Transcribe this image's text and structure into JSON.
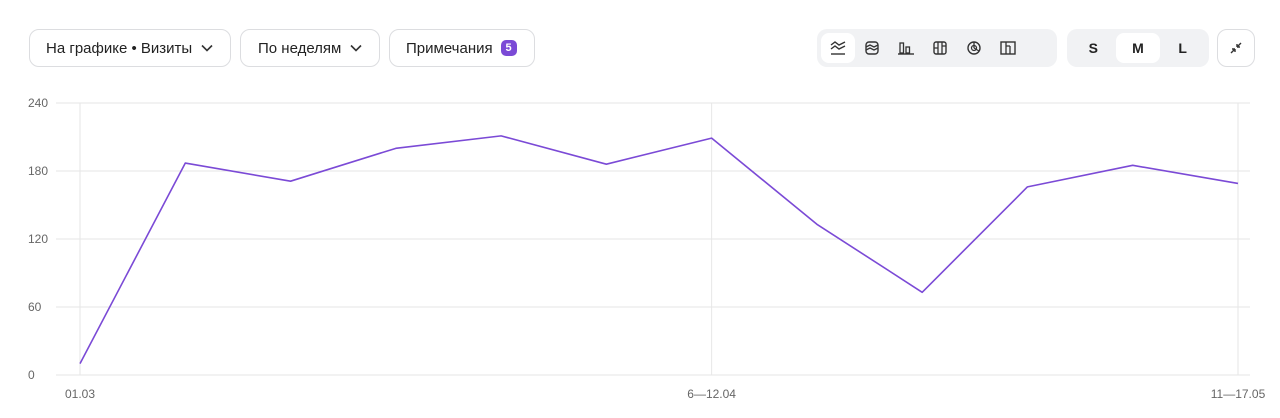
{
  "toolbar": {
    "metric_dropdown": "На графике • Визиты",
    "period_dropdown": "По неделям",
    "notes_label": "Примечания",
    "notes_count": "5",
    "chart_type_icons": [
      "line-chart-icon",
      "stacked-area-icon",
      "bar-chart-icon",
      "stacked-bar-icon",
      "pie-chart-icon",
      "column-chart-icon"
    ],
    "sizes": [
      "S",
      "M",
      "L"
    ],
    "active_size": "M"
  },
  "colors": {
    "line": "#7b4ad6",
    "grid": "#e6e6e6",
    "axis_text": "#666666"
  },
  "chart_data": {
    "type": "line",
    "x": [
      "01.03",
      "",
      "",
      "",
      "",
      "",
      "6—12.04",
      "",
      "",
      "",
      "",
      "11—17.05"
    ],
    "x_tick_labels": [
      "01.03",
      "6—12.04",
      "11—17.05"
    ],
    "series": [
      {
        "values": [
          10,
          187,
          171,
          200,
          211,
          186,
          209,
          133,
          73,
          166,
          185,
          169
        ]
      }
    ],
    "y_ticks": [
      "0",
      "60",
      "120",
      "180",
      "240"
    ],
    "ylim": [
      0,
      240
    ],
    "grid": true
  }
}
